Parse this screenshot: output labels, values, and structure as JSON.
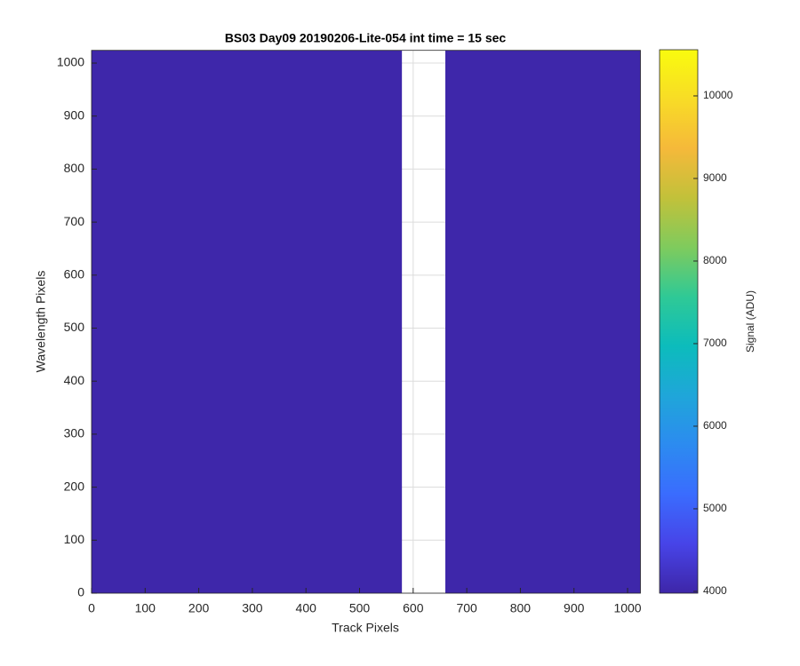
{
  "chart_data": {
    "type": "image",
    "title": "BS03 Day09 20190206-Lite-054 int time = 15 sec",
    "x_label": "Track Pixels",
    "y_label": "Wavelength Pixels",
    "xlim": [
      0,
      1024
    ],
    "ylim": [
      0,
      1024
    ],
    "xticks": [
      0,
      100,
      200,
      300,
      400,
      500,
      600,
      700,
      800,
      900,
      1000
    ],
    "yticks": [
      0,
      100,
      200,
      300,
      400,
      500,
      600,
      700,
      800,
      900,
      1000
    ],
    "grid": true,
    "regions": [
      {
        "x": [
          0,
          579
        ],
        "y": [
          0,
          1024
        ],
        "value": 4000
      },
      {
        "x": [
          660,
          1024
        ],
        "y": [
          0,
          1024
        ],
        "value": 4000
      }
    ],
    "colormap": "parula",
    "colorbar": {
      "label": "Signal (ADU)",
      "clim": [
        3978,
        10559
      ],
      "ticks": [
        4000,
        5000,
        6000,
        7000,
        8000,
        9000,
        10000
      ]
    }
  }
}
